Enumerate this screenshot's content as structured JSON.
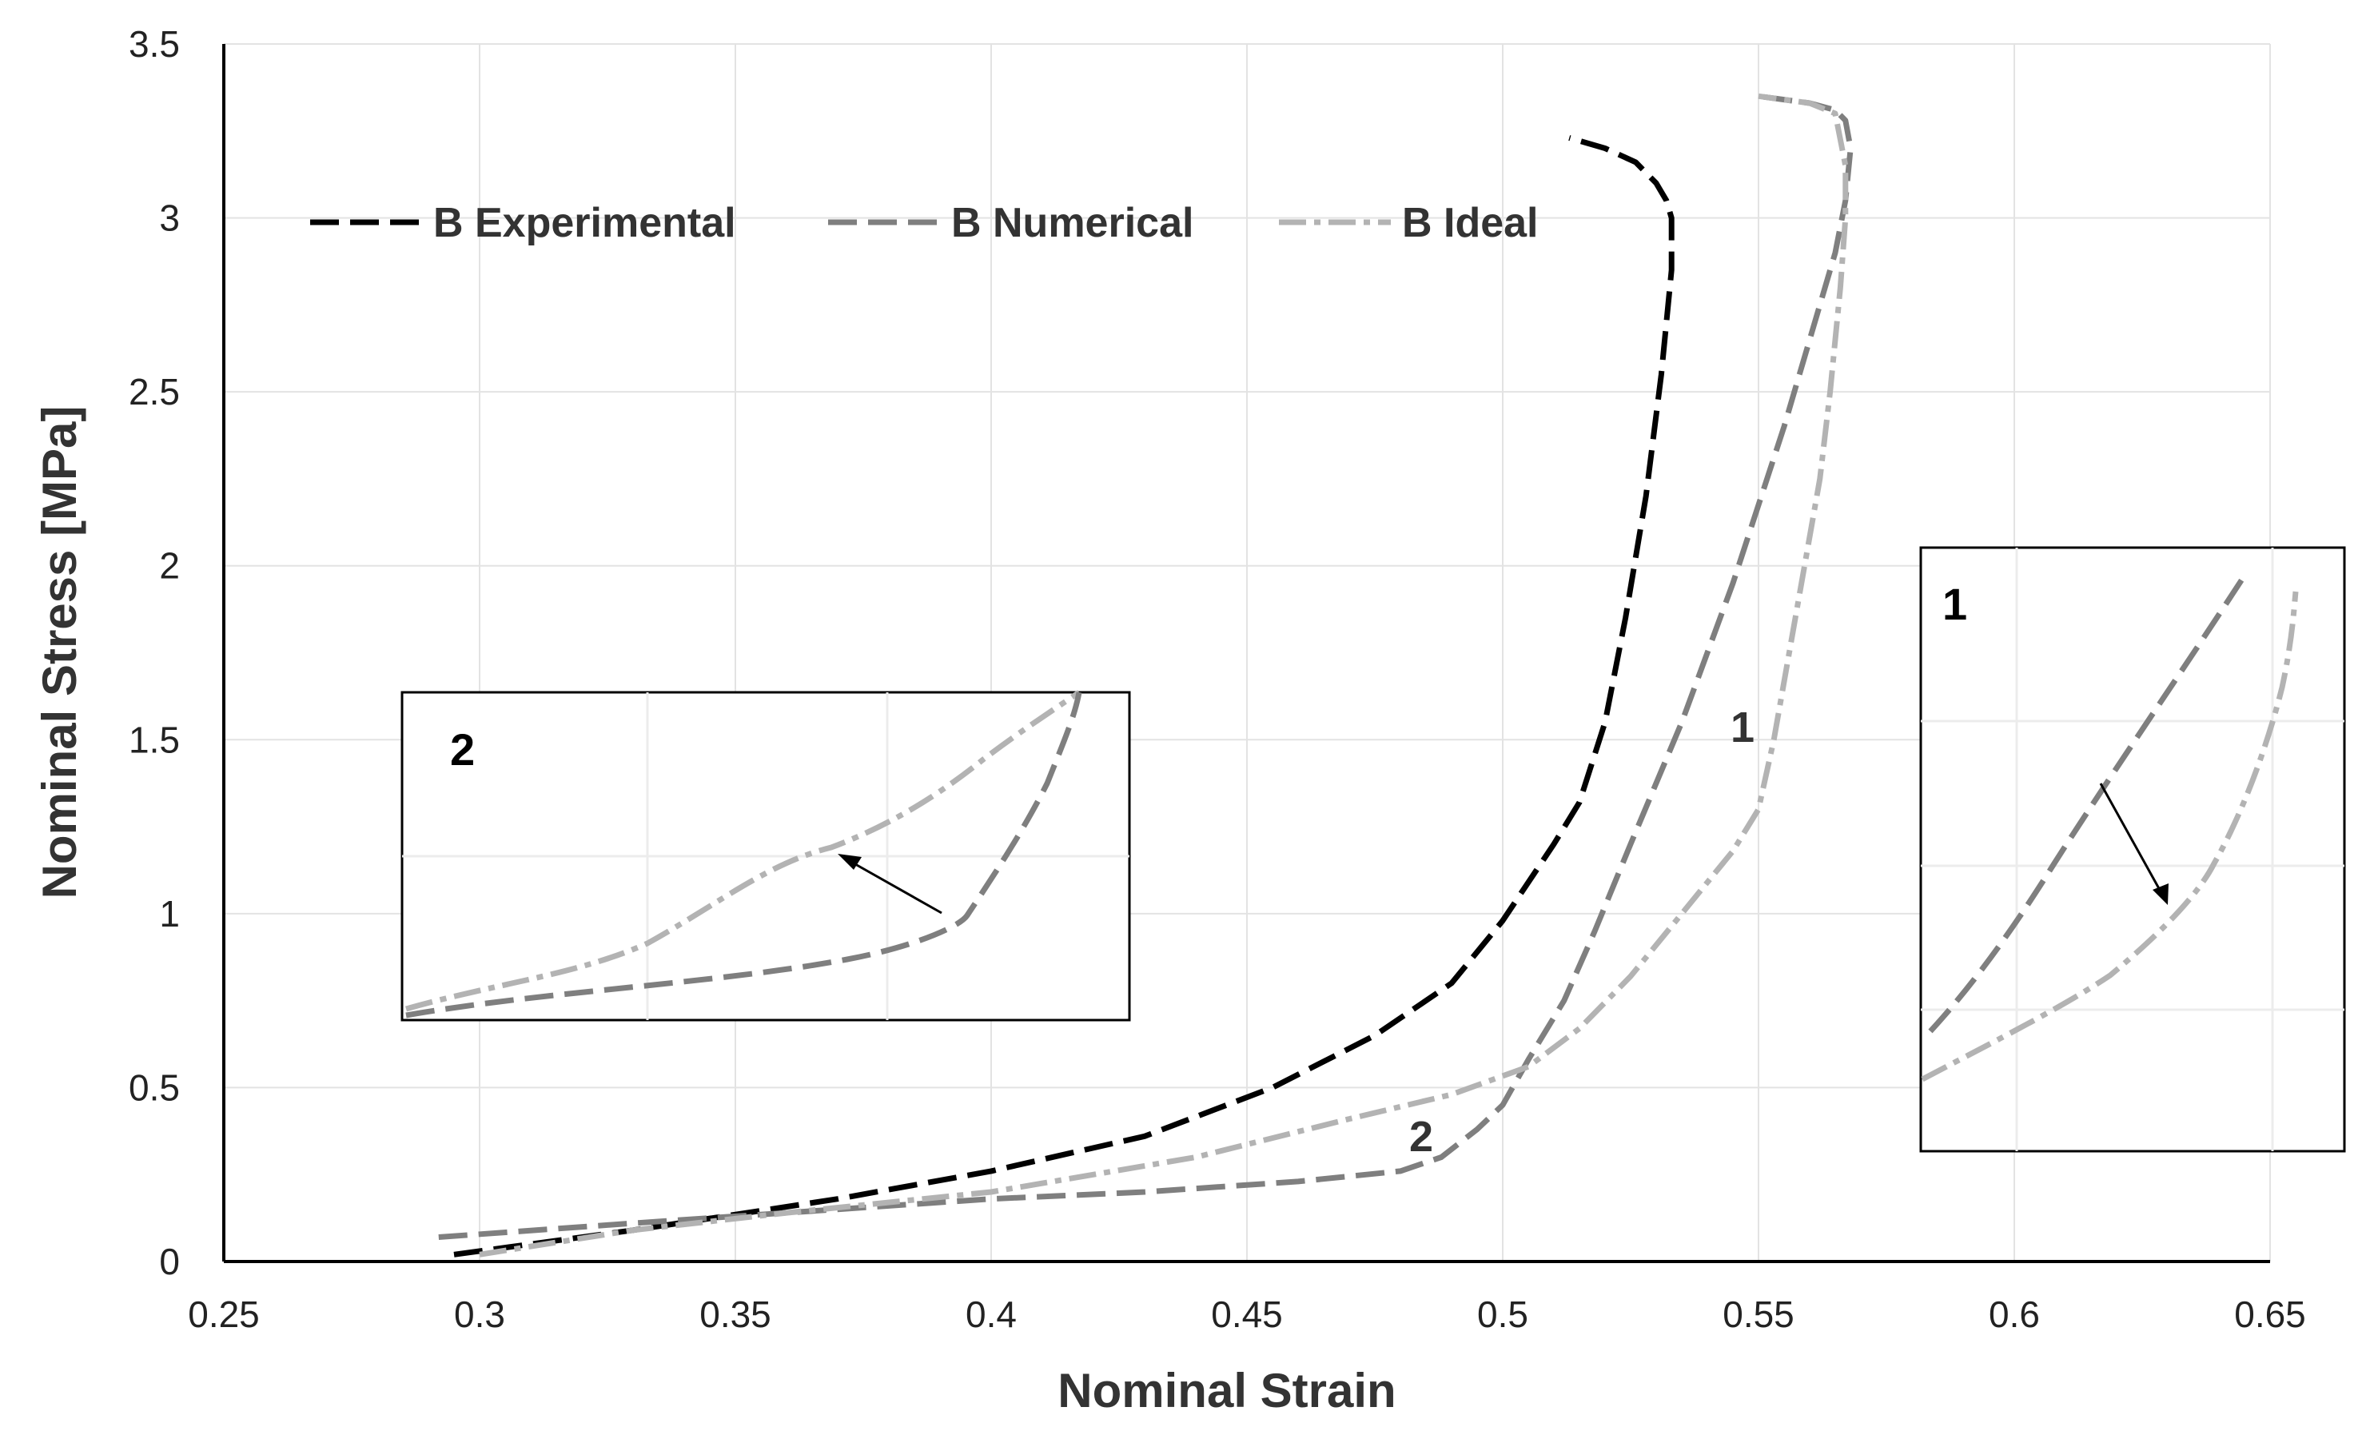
{
  "chart_data": {
    "type": "line",
    "title": "",
    "xlabel": "Nominal Strain",
    "ylabel": "Nominal Stress [MPa]",
    "xlim": [
      0.25,
      0.65
    ],
    "ylim": [
      0,
      3.5
    ],
    "xticks": [
      0.25,
      0.3,
      0.35,
      0.4,
      0.45,
      0.5,
      0.55,
      0.6,
      0.65
    ],
    "xtick_labels": [
      "0.25",
      "0.3",
      "0.35",
      "0.4",
      "0.45",
      "0.5",
      "0.55",
      "0.6",
      "0.65"
    ],
    "yticks": [
      0,
      0.5,
      1,
      1.5,
      2,
      2.5,
      3,
      3.5
    ],
    "ytick_labels": [
      "0",
      "0.5",
      "1",
      "1.5",
      "2",
      "2.5",
      "3",
      "3.5"
    ],
    "grid": true,
    "legend_position": "top-left",
    "series": [
      {
        "name": "B Experimental",
        "style": "dashed",
        "color": "#000000",
        "x": [
          0.295,
          0.33,
          0.37,
          0.4,
          0.43,
          0.455,
          0.475,
          0.49,
          0.5,
          0.51,
          0.515,
          0.52,
          0.524,
          0.528,
          0.531,
          0.533,
          0.533,
          0.532,
          0.53,
          0.526,
          0.52,
          0.513
        ],
        "y": [
          0.02,
          0.09,
          0.18,
          0.26,
          0.36,
          0.5,
          0.65,
          0.8,
          0.98,
          1.2,
          1.32,
          1.55,
          1.85,
          2.2,
          2.55,
          2.85,
          3.0,
          3.05,
          3.1,
          3.16,
          3.2,
          3.23
        ]
      },
      {
        "name": "B Numerical",
        "style": "dashed",
        "color": "#7f7f7f",
        "x": [
          0.292,
          0.33,
          0.37,
          0.4,
          0.43,
          0.46,
          0.48,
          0.488,
          0.495,
          0.5,
          0.505,
          0.512,
          0.518,
          0.525,
          0.535,
          0.545,
          0.555,
          0.56,
          0.565,
          0.567,
          0.568,
          0.567,
          0.565,
          0.56,
          0.55
        ],
        "y": [
          0.07,
          0.11,
          0.15,
          0.18,
          0.2,
          0.23,
          0.26,
          0.3,
          0.38,
          0.45,
          0.58,
          0.75,
          0.95,
          1.2,
          1.55,
          1.95,
          2.4,
          2.65,
          2.9,
          3.05,
          3.2,
          3.28,
          3.31,
          3.33,
          3.35
        ]
      },
      {
        "name": "B Ideal",
        "style": "dash-dot",
        "color": "#b3b3b3",
        "x": [
          0.3,
          0.33,
          0.36,
          0.4,
          0.44,
          0.47,
          0.49,
          0.505,
          0.515,
          0.525,
          0.535,
          0.545,
          0.55,
          0.553,
          0.556,
          0.559,
          0.562,
          0.564,
          0.566,
          0.567,
          0.567,
          0.565,
          0.56,
          0.55
        ],
        "y": [
          0.02,
          0.09,
          0.14,
          0.2,
          0.3,
          0.41,
          0.48,
          0.56,
          0.67,
          0.82,
          1.0,
          1.18,
          1.3,
          1.5,
          1.75,
          2.0,
          2.25,
          2.5,
          2.8,
          3.0,
          3.15,
          3.3,
          3.33,
          3.35
        ]
      }
    ],
    "annotations": [
      "1",
      "2"
    ]
  },
  "insets": {
    "inset2": {
      "label": "2"
    },
    "inset1": {
      "label": "1"
    }
  }
}
